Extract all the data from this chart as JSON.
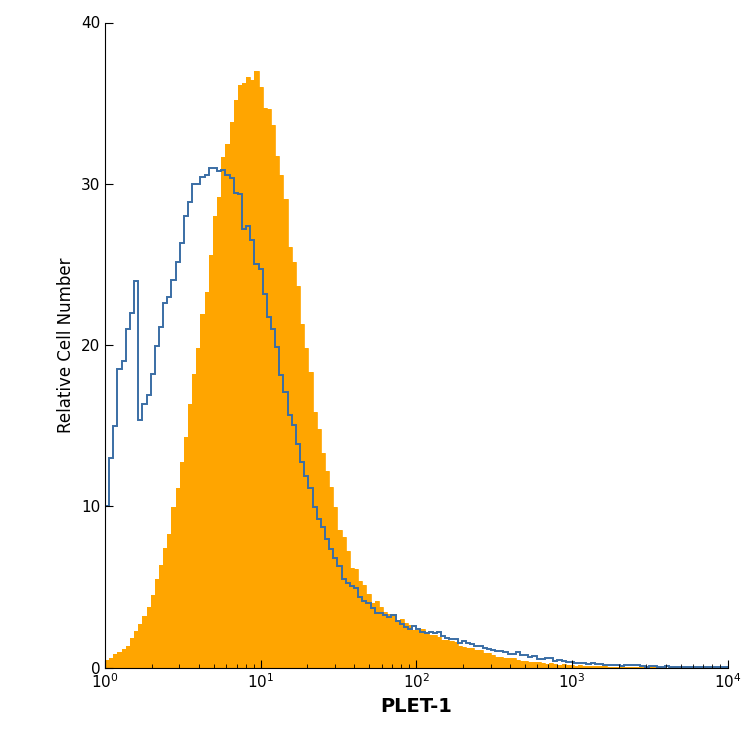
{
  "xlabel": "PLET-1",
  "ylabel": "Relative Cell Number",
  "xlim": [
    1,
    10000
  ],
  "ylim": [
    0,
    40
  ],
  "yticks": [
    0,
    10,
    20,
    30,
    40
  ],
  "orange_color": "#FFA500",
  "blue_color": "#3A6EA5",
  "blue_linewidth": 1.4,
  "orange_linewidth": 0.6,
  "xlabel_fontsize": 14,
  "ylabel_fontsize": 12,
  "tick_fontsize": 11,
  "figsize": [
    7.5,
    7.5
  ],
  "dpi": 100,
  "blue_left_clipped_height": 25,
  "blue_peak_height": 31,
  "orange_peak_height": 37,
  "n_bins": 150
}
